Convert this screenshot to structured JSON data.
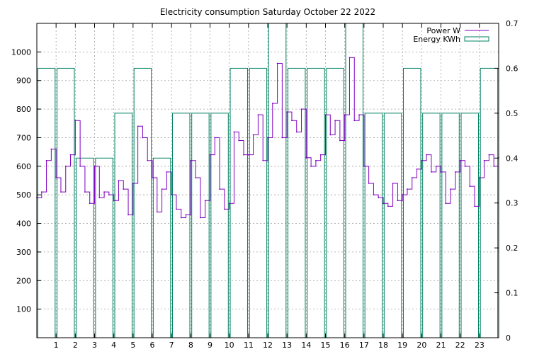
{
  "chart_data": {
    "type": "line",
    "title": "Electricity consumption Saturday October 22 2022",
    "xlabel": "",
    "ylabel": "",
    "x_ticks": [
      "1",
      "2",
      "3",
      "4",
      "5",
      "6",
      "7",
      "8",
      "9",
      "10",
      "11",
      "12",
      "13",
      "14",
      "15",
      "16",
      "17",
      "18",
      "19",
      "20",
      "21",
      "22",
      "23"
    ],
    "xlim": [
      0,
      24
    ],
    "y_left": {
      "lim": [
        0,
        1100
      ],
      "ticks": [
        "100",
        "200",
        "300",
        "400",
        "500",
        "600",
        "700",
        "800",
        "900",
        "1000"
      ]
    },
    "y_right": {
      "lim": [
        0,
        0.7
      ],
      "ticks": [
        "0",
        "0.1",
        "0.2",
        "0.3",
        "0.4",
        "0.5",
        "0.6",
        "0.7"
      ]
    },
    "grid": true,
    "legend_position": "top-right",
    "colors": {
      "power": "#8000c0",
      "energy": "#008060"
    },
    "series": [
      {
        "name": "Power W",
        "axis": "left",
        "style": "line",
        "x": [
          0,
          0.25,
          0.5,
          0.75,
          1.0,
          1.25,
          1.5,
          1.75,
          2.0,
          2.25,
          2.5,
          2.75,
          3.0,
          3.25,
          3.5,
          3.75,
          4.0,
          4.25,
          4.5,
          4.75,
          5.0,
          5.25,
          5.5,
          5.75,
          6.0,
          6.25,
          6.5,
          6.75,
          7.0,
          7.25,
          7.5,
          7.75,
          8.0,
          8.25,
          8.5,
          8.75,
          9.0,
          9.25,
          9.5,
          9.75,
          10.0,
          10.25,
          10.5,
          10.75,
          11.0,
          11.25,
          11.5,
          11.75,
          12.0,
          12.25,
          12.5,
          12.75,
          13.0,
          13.25,
          13.5,
          13.75,
          14.0,
          14.25,
          14.5,
          14.75,
          15.0,
          15.25,
          15.5,
          15.75,
          16.0,
          16.25,
          16.5,
          16.75,
          17.0,
          17.25,
          17.5,
          17.75,
          18.0,
          18.25,
          18.5,
          18.75,
          19.0,
          19.25,
          19.5,
          19.75,
          20.0,
          20.25,
          20.5,
          20.75,
          21.0,
          21.25,
          21.5,
          21.75,
          22.0,
          22.25,
          22.5,
          22.75,
          23.0,
          23.25,
          23.5,
          23.75,
          24.0
        ],
        "y": [
          490,
          510,
          620,
          660,
          560,
          510,
          600,
          640,
          760,
          600,
          510,
          470,
          600,
          490,
          510,
          500,
          480,
          550,
          520,
          430,
          540,
          740,
          700,
          620,
          560,
          440,
          520,
          580,
          500,
          450,
          420,
          430,
          620,
          560,
          420,
          480,
          640,
          700,
          520,
          450,
          470,
          720,
          690,
          640,
          640,
          710,
          780,
          620,
          700,
          820,
          960,
          700,
          790,
          760,
          720,
          800,
          630,
          600,
          620,
          640,
          780,
          710,
          760,
          690,
          780,
          980,
          760,
          780,
          600,
          540,
          500,
          490,
          470,
          460,
          540,
          480,
          500,
          520,
          560,
          590,
          620,
          640,
          580,
          600,
          580,
          470,
          520,
          580,
          620,
          600,
          530,
          460,
          560,
          620,
          640,
          600,
          630
        ]
      },
      {
        "name": "Energy KWh",
        "axis": "right",
        "style": "steps",
        "x": [
          0,
          1,
          2,
          3,
          4,
          5,
          6,
          7,
          8,
          9,
          10,
          11,
          12,
          13,
          14,
          15,
          16,
          17,
          18,
          19,
          20,
          21,
          22,
          23
        ],
        "y": [
          0.6,
          0.6,
          0.4,
          0.4,
          0.5,
          0.6,
          0.4,
          0.5,
          0.5,
          0.5,
          0.6,
          0.6,
          0.7,
          0.6,
          0.6,
          0.6,
          0.7,
          0.5,
          0.5,
          0.6,
          0.5,
          0.5,
          0.5,
          0.6
        ]
      }
    ]
  }
}
